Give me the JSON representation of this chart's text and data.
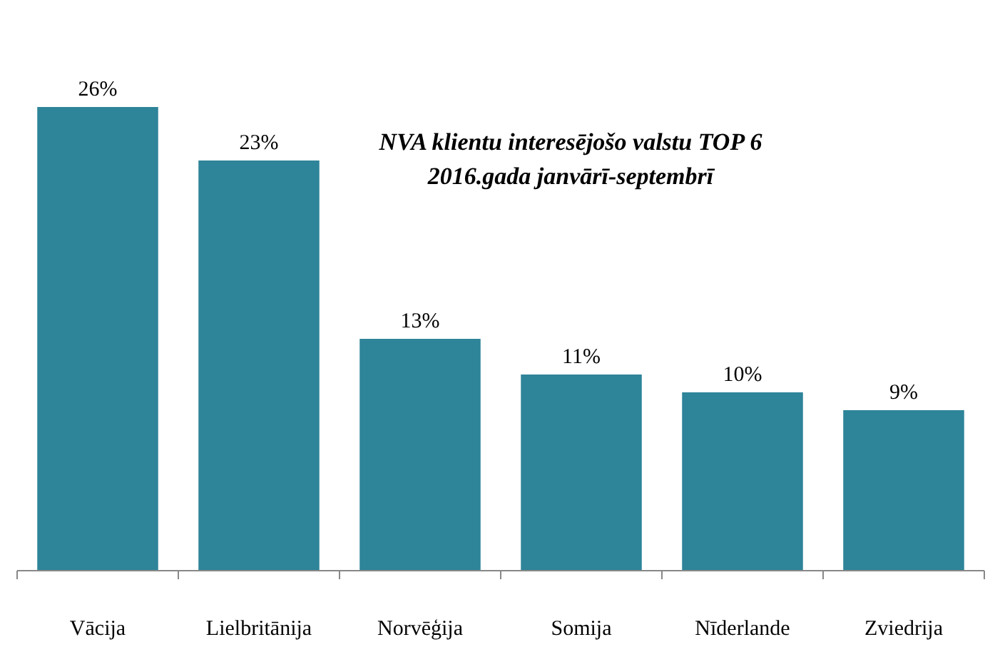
{
  "chart_data": {
    "type": "bar",
    "title": "NVA klientu interesējošo valstu TOP 6",
    "subtitle": "2016.gada janvārī-septembrī",
    "categories": [
      "Vācija",
      "Lielbritānija",
      "Norvēģija",
      "Somija",
      "Nīderlande",
      "Zviedrija"
    ],
    "values": [
      26,
      23,
      13,
      11,
      10,
      9
    ],
    "value_labels": [
      "26%",
      "23%",
      "13%",
      "11%",
      "10%",
      "9%"
    ],
    "color": "#2e8499"
  }
}
